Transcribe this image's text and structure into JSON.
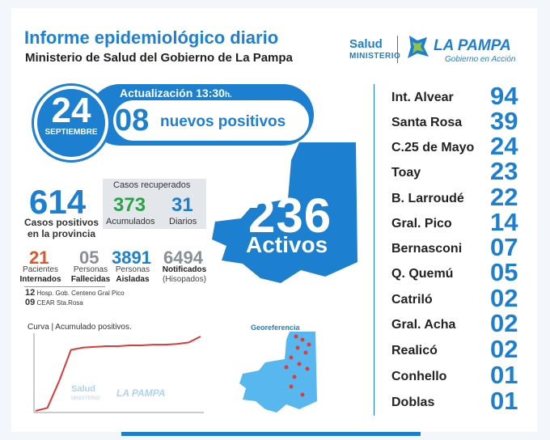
{
  "header": {
    "title": "Informe epidemiológico diario",
    "subtitle": "Ministerio de Salud del Gobierno de La Pampa"
  },
  "logo": {
    "salud": "Salud",
    "ministerio": "MINISTERIO",
    "la_pampa": "LA PAMPA",
    "tagline": "Gobierno en Acción"
  },
  "date": {
    "day": "24",
    "month": "SEPTIEMBRE"
  },
  "update": {
    "label": "Actualización 13:30",
    "suffix": "h."
  },
  "new_positives": {
    "count": "08",
    "label": "nuevos positivos"
  },
  "totals": {
    "cases": "614",
    "cases_label_1": "Casos positivos",
    "cases_label_2": "en la provincia"
  },
  "recovered": {
    "title": "Casos recuperados",
    "accumulated": "373",
    "accumulated_label": "Acumulados",
    "daily": "31",
    "daily_label": "Diarios"
  },
  "stats": {
    "hospitalized": "21",
    "hospitalized_l1": "Pacientes",
    "hospitalized_l2": "Internados",
    "deceased": "05",
    "deceased_l1": "Personas",
    "deceased_l2": "Fallecidas",
    "isolated": "3891",
    "isolated_l1": "Personas",
    "isolated_l2": "Aisladas",
    "notified": "6494",
    "notified_l1": "Notificados",
    "notified_l2": "(Hisopados)"
  },
  "hospitals": [
    {
      "count": "12",
      "name": "Hosp. Gob. Centeno Gral Pico"
    },
    {
      "count": "09",
      "name": "CEAR Sta.Rosa"
    }
  ],
  "active": {
    "count": "236",
    "label": "Activos"
  },
  "curve": {
    "title": "Curva | Acumulado positivos.",
    "points": [
      0,
      4,
      40,
      82,
      85,
      86,
      87,
      87,
      88,
      88,
      89,
      89,
      90,
      92,
      100
    ],
    "color": "#d93a3a"
  },
  "geo": {
    "title": "Georeferencia"
  },
  "localities": [
    {
      "name": "Int. Alvear",
      "count": "94"
    },
    {
      "name": "Santa Rosa",
      "count": "39"
    },
    {
      "name": "C.25 de Mayo",
      "count": "24"
    },
    {
      "name": "Toay",
      "count": "23"
    },
    {
      "name": "B. Larroudé",
      "count": "22"
    },
    {
      "name": "Gral. Pico",
      "count": "14"
    },
    {
      "name": "Bernasconi",
      "count": "07"
    },
    {
      "name": "Q. Quemú",
      "count": "05"
    },
    {
      "name": "Catriló",
      "count": "02"
    },
    {
      "name": "Gral. Acha",
      "count": "02"
    },
    {
      "name": "Realicó",
      "count": "02"
    },
    {
      "name": "Conhello",
      "count": "01"
    },
    {
      "name": "Doblas",
      "count": "01"
    }
  ],
  "colors": {
    "primary": "#1d7fd0",
    "recovered": "#2aa24a",
    "hospitalized": "#e0542a",
    "gray": "#8a8f96"
  }
}
